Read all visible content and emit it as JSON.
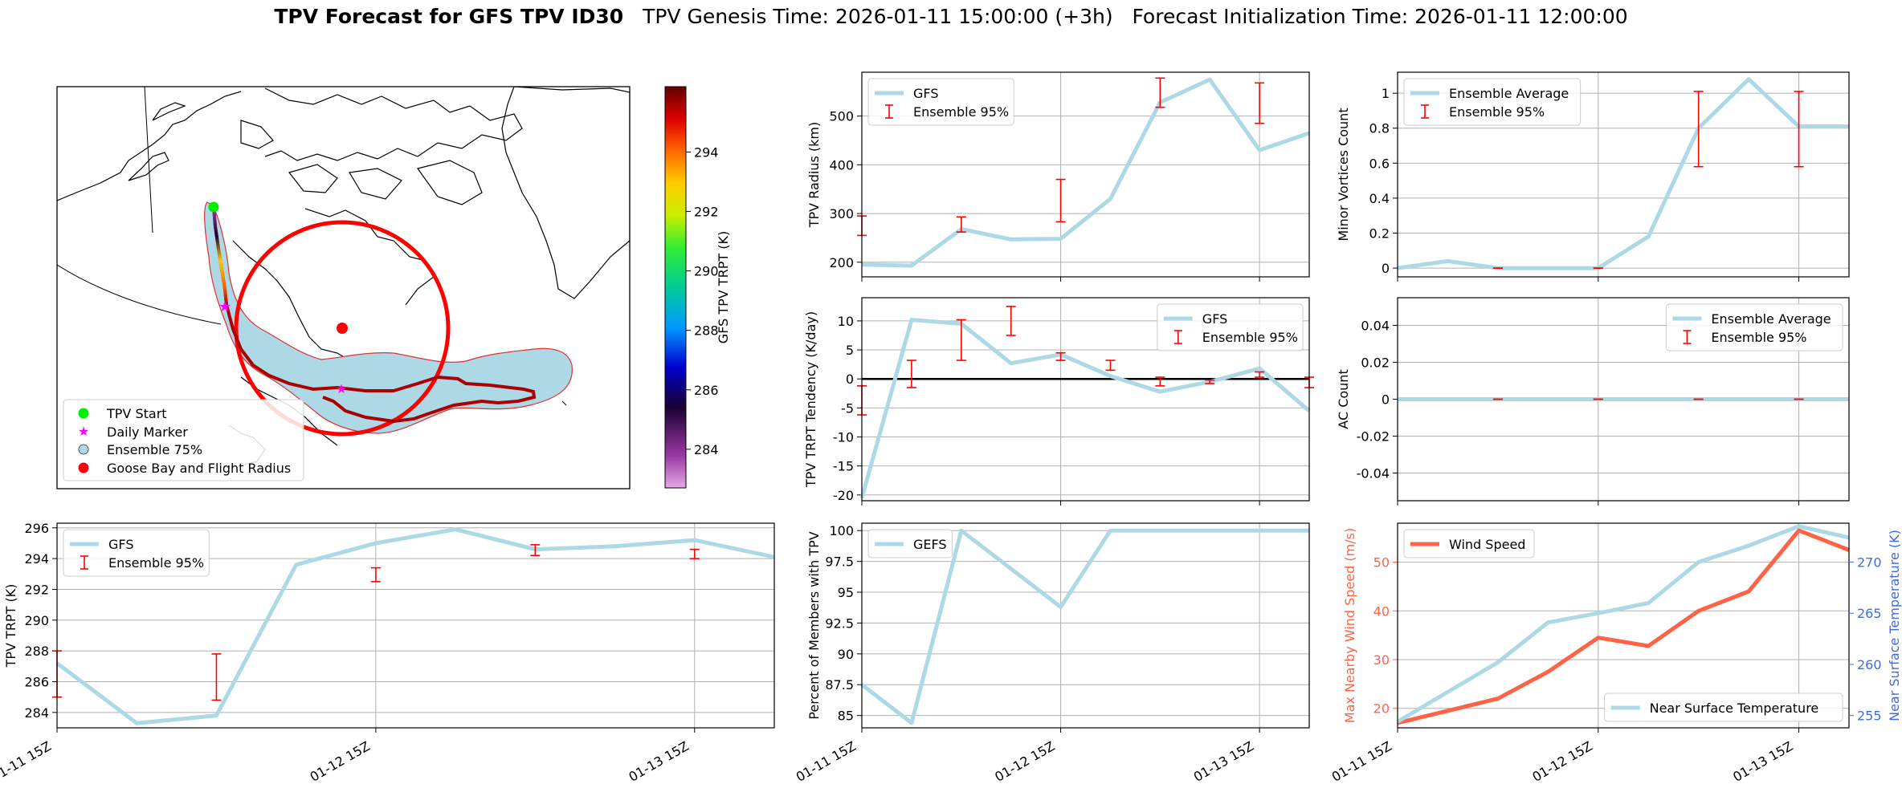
{
  "title": {
    "bold": "TPV Forecast for GFS TPV ID30",
    "genesis": "TPV Genesis Time: 2026-01-11 15:00:00 (+3h)",
    "init": "Forecast Initialization Time: 2026-01-11 12:00:00"
  },
  "colors": {
    "gfs_line": "#add8e6",
    "error_bar": "#ff0000",
    "wind": "#ff6347",
    "temp_axis": "#4169e1",
    "zero_line": "#000000"
  },
  "map": {
    "legend": [
      "TPV Start",
      "Daily Marker",
      "Ensemble 75%",
      "Goose Bay and Flight Radius"
    ],
    "colorbar": {
      "label": "GFS TPV TRPT (K)",
      "ticks": [
        284,
        286,
        288,
        290,
        292,
        294
      ],
      "range": [
        282.7,
        296.2
      ]
    }
  },
  "chart_data": [
    {
      "id": "radius",
      "type": "line",
      "ylabel": "TPV Radius (km)",
      "ylim": [
        170,
        590
      ],
      "yticks": [
        200,
        300,
        400,
        500
      ],
      "legend": [
        "GFS",
        "Ensemble 95%"
      ],
      "x": [
        0,
        1,
        2,
        3,
        4,
        5,
        6,
        7,
        8,
        9
      ],
      "series": [
        {
          "name": "GFS",
          "values": [
            195,
            193,
            268,
            247,
            248,
            330,
            528,
            575,
            430,
            465
          ]
        }
      ],
      "errorbars": [
        {
          "x": 0,
          "low": 255,
          "high": 295
        },
        {
          "x": 2,
          "low": 262,
          "high": 293
        },
        {
          "x": 4,
          "low": 283,
          "high": 370
        },
        {
          "x": 6,
          "low": 518,
          "high": 578
        },
        {
          "x": 8,
          "low": 485,
          "high": 568
        }
      ]
    },
    {
      "id": "minor",
      "type": "line",
      "ylabel": "Minor Vortices Count",
      "ylim": [
        -0.05,
        1.12
      ],
      "yticks": [
        0.0,
        0.2,
        0.4,
        0.6,
        0.8,
        1.0
      ],
      "legend": [
        "Ensemble Average",
        "Ensemble 95%"
      ],
      "x": [
        0,
        1,
        2,
        3,
        4,
        5,
        6,
        7,
        8,
        9
      ],
      "series": [
        {
          "name": "Ensemble Average",
          "values": [
            0,
            0.04,
            0,
            0,
            0,
            0.18,
            0.8,
            1.08,
            0.81,
            0.81
          ]
        }
      ],
      "errorbars": [
        {
          "x": 2,
          "low": 0,
          "high": 0
        },
        {
          "x": 4,
          "low": 0,
          "high": 0
        },
        {
          "x": 6,
          "low": 0.58,
          "high": 1.01
        },
        {
          "x": 8,
          "low": 0.58,
          "high": 1.01
        }
      ]
    },
    {
      "id": "tendency",
      "type": "line",
      "ylabel": "TPV TRPT Tendency (K/day)",
      "ylim": [
        -21,
        14
      ],
      "yticks": [
        -20,
        -15,
        -10,
        -5,
        0,
        5,
        10
      ],
      "legend": [
        "GFS",
        "Ensemble 95%"
      ],
      "x": [
        0,
        1,
        2,
        3,
        4,
        5,
        6,
        7,
        8,
        9
      ],
      "series": [
        {
          "name": "GFS",
          "values": [
            -20.5,
            10.2,
            9.5,
            2.7,
            4.2,
            0.5,
            -2.2,
            -0.5,
            1.8,
            -5.5
          ]
        }
      ],
      "errorbars": [
        {
          "x": 0,
          "low": -6.2,
          "high": -1.2
        },
        {
          "x": 1,
          "low": -1.5,
          "high": 3.2
        },
        {
          "x": 2,
          "low": 3.2,
          "high": 10.2
        },
        {
          "x": 3,
          "low": 7.5,
          "high": 12.5
        },
        {
          "x": 4,
          "low": 3.2,
          "high": 4.5
        },
        {
          "x": 5,
          "low": 1.5,
          "high": 3.2
        },
        {
          "x": 6,
          "low": -1.2,
          "high": 0.3
        },
        {
          "x": 7,
          "low": -0.8,
          "high": -0.2
        },
        {
          "x": 8,
          "low": 0.3,
          "high": 1.2
        },
        {
          "x": 9,
          "low": -1.5,
          "high": 0.3
        }
      ]
    },
    {
      "id": "ac",
      "type": "line",
      "ylabel": "AC Count",
      "ylim": [
        -0.055,
        0.055
      ],
      "yticks": [
        -0.04,
        -0.02,
        0.0,
        0.02,
        0.04
      ],
      "legend": [
        "Ensemble Average",
        "Ensemble 95%"
      ],
      "x": [
        0,
        1,
        2,
        3,
        4,
        5,
        6,
        7,
        8,
        9
      ],
      "series": [
        {
          "name": "Ensemble Average",
          "values": [
            0,
            0,
            0,
            0,
            0,
            0,
            0,
            0,
            0,
            0
          ]
        }
      ],
      "errorbars": [
        {
          "x": 2,
          "low": 0,
          "high": 0
        },
        {
          "x": 4,
          "low": 0,
          "high": 0
        },
        {
          "x": 6,
          "low": 0,
          "high": 0
        },
        {
          "x": 8,
          "low": 0,
          "high": 0
        }
      ]
    },
    {
      "id": "trpt",
      "type": "line",
      "ylabel": "TPV TRPT (K)",
      "ylim": [
        283,
        296.3
      ],
      "yticks": [
        284,
        286,
        288,
        290,
        292,
        294,
        296
      ],
      "legend": [
        "GFS",
        "Ensemble 95%"
      ],
      "xticks": [
        "01-11 15Z",
        "01-12 15Z",
        "01-13 15Z"
      ],
      "x": [
        0,
        1,
        2,
        3,
        4,
        5,
        6,
        7,
        8,
        9
      ],
      "series": [
        {
          "name": "GFS",
          "values": [
            287.2,
            283.3,
            283.8,
            293.6,
            295.0,
            295.9,
            294.6,
            294.8,
            295.2,
            294.1
          ]
        }
      ],
      "errorbars": [
        {
          "x": 0,
          "low": 285.0,
          "high": 288.0
        },
        {
          "x": 2,
          "low": 284.8,
          "high": 287.8
        },
        {
          "x": 4,
          "low": 292.5,
          "high": 293.4
        },
        {
          "x": 6,
          "low": 294.2,
          "high": 294.9
        },
        {
          "x": 8,
          "low": 294.0,
          "high": 294.6
        }
      ]
    },
    {
      "id": "percent",
      "type": "line",
      "ylabel": "Percent of Members with TPV",
      "ylim": [
        84,
        100.6
      ],
      "yticks": [
        85.0,
        87.5,
        90.0,
        92.5,
        95.0,
        97.5,
        100.0
      ],
      "legend": [
        "GEFS"
      ],
      "xticks": [
        "01-11 15Z",
        "01-12 15Z",
        "01-13 15Z"
      ],
      "x": [
        0,
        1,
        2,
        3,
        4,
        5,
        6,
        7,
        8,
        9
      ],
      "series": [
        {
          "name": "GEFS",
          "values": [
            87.5,
            84.4,
            100.0,
            96.9,
            93.8,
            100.0,
            100.0,
            100.0,
            100.0,
            100.0
          ]
        }
      ],
      "errorbars": []
    },
    {
      "id": "wind",
      "type": "line",
      "ylabel": "Max Nearby Wind Speed (m/s)",
      "ylabel2": "Near Surface Temperature (K)",
      "ylim": [
        16,
        58
      ],
      "yticks": [
        20,
        30,
        40,
        50
      ],
      "ylim2": [
        253.8,
        273.8
      ],
      "yticks2": [
        255,
        260,
        265,
        270
      ],
      "legend": [
        "Wind Speed"
      ],
      "legend2": [
        "Near Surface Temperature"
      ],
      "xticks": [
        "01-11 15Z",
        "01-12 15Z",
        "01-13 15Z"
      ],
      "x": [
        0,
        1,
        2,
        3,
        4,
        5,
        6,
        7,
        8,
        9
      ],
      "series": [
        {
          "name": "Wind Speed",
          "axis": "left",
          "values": [
            17,
            19.5,
            22,
            27.5,
            34.5,
            32.8,
            40,
            44,
            56.5,
            52.5
          ]
        },
        {
          "name": "Near Surface Temperature",
          "axis": "right",
          "values": [
            254.4,
            257.3,
            260.2,
            264.1,
            265.0,
            266.0,
            270.0,
            271.6,
            273.5,
            272.4
          ]
        }
      ],
      "errorbars": []
    }
  ]
}
